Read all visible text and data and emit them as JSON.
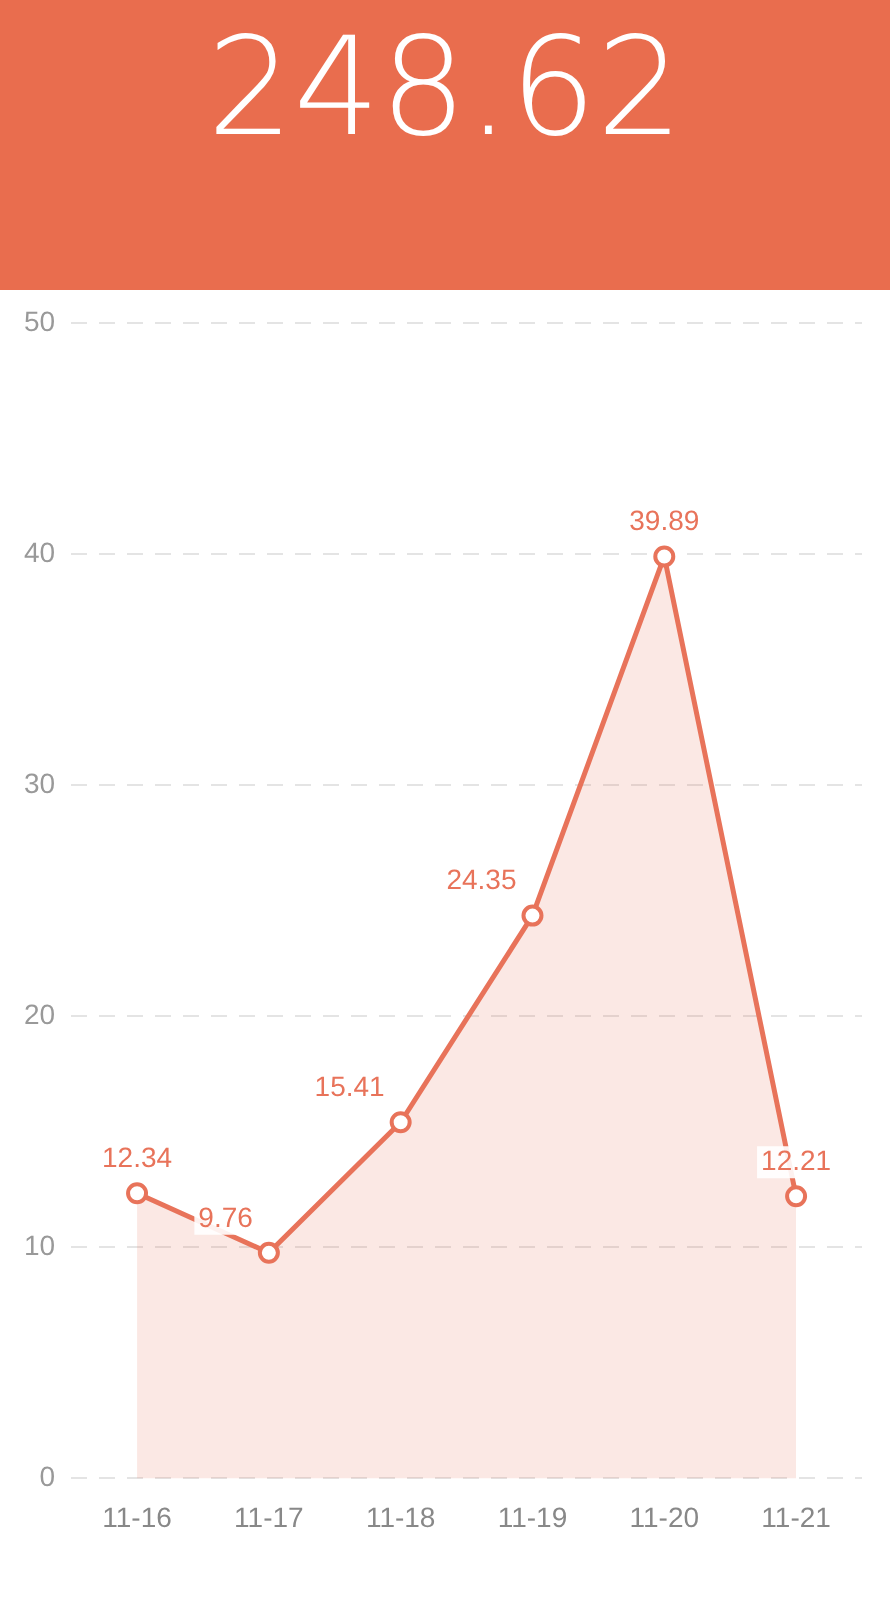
{
  "chart_data": {
    "type": "area",
    "title": "248.62",
    "categories": [
      "11-16",
      "11-17",
      "11-18",
      "11-19",
      "11-20",
      "11-21"
    ],
    "series": [
      {
        "color": "#e8735a",
        "values": [
          12.34,
          9.76,
          15.41,
          24.35,
          39.89,
          12.21
        ]
      }
    ],
    "ylim": [
      0,
      50
    ],
    "yticks": [
      0,
      10,
      20,
      30,
      40,
      50
    ],
    "grid": "y",
    "data_labels": true,
    "marker": "circle",
    "line_style": "solid"
  }
}
